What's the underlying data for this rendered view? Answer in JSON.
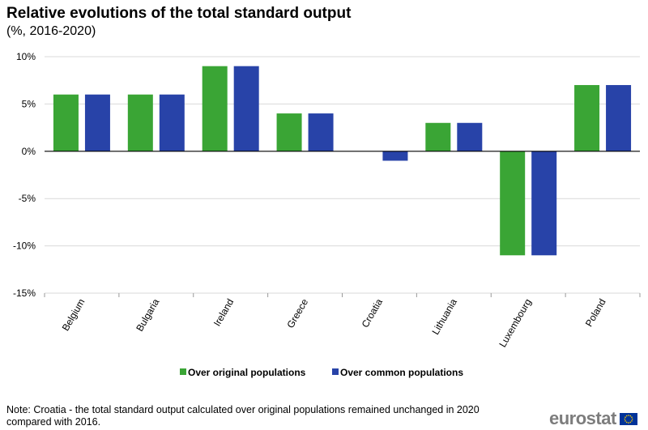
{
  "header": {
    "title": "Relative evolutions of the total standard output",
    "subtitle": "(%, 2016-2020)"
  },
  "chart_data": {
    "type": "bar",
    "title": "Relative evolutions of the total standard output",
    "subtitle": "(%, 2016-2020)",
    "xlabel": "",
    "ylabel": "",
    "ylim": [
      -15,
      10
    ],
    "yticks": [
      10,
      5,
      0,
      -5,
      -10,
      -15
    ],
    "ytick_labels": [
      "10%",
      "5%",
      "0%",
      "-5%",
      "-10%",
      "-15%"
    ],
    "categories": [
      "Belgium",
      "Bulgaria",
      "Ireland",
      "Greece",
      "Croatia",
      "Lithuania",
      "Luxembourg",
      "Poland"
    ],
    "series": [
      {
        "name": "Over original populations",
        "color": "#3aa535",
        "values": [
          6,
          6,
          9,
          4,
          0,
          3,
          -11,
          7
        ]
      },
      {
        "name": "Over common populations",
        "color": "#2843a8",
        "values": [
          6,
          6,
          9,
          4,
          -1,
          3,
          -11,
          7
        ]
      }
    ],
    "grid": true,
    "legend": "bottom"
  },
  "footer": {
    "note": "Note: Croatia - the total standard output calculated over original populations remained unchanged in 2020 compared with 2016.",
    "logo_text": "eurostat",
    "logo_flag_color": "#003399",
    "logo_star_color": "#ffcc00"
  }
}
